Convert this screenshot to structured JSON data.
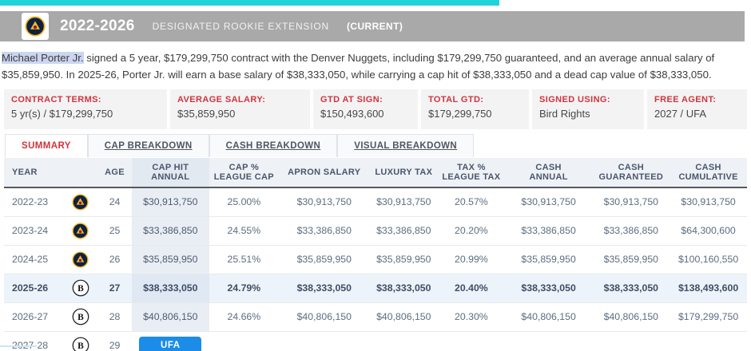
{
  "header": {
    "years": "2022-2026",
    "contract_type": "DESIGNATED ROOKIE EXTENSION",
    "status": "(CURRENT)"
  },
  "summary": {
    "player_highlight": "Michael Porter Jr.",
    "text_rest": " signed a 5 year, $179,299,750 contract with the Denver Nuggets, including $179,299,750 guaranteed, and an average annual salary of $35,859,950. In 2025-26, Porter Jr. will earn a base salary of $38,333,050, while carrying a cap hit of $38,333,050 and a dead cap value of $38,333,050."
  },
  "terms": [
    {
      "label": "CONTRACT TERMS:",
      "value": "5 yr(s) / $179,299,750"
    },
    {
      "label": "AVERAGE SALARY:",
      "value": "$35,859,950"
    },
    {
      "label": "GTD AT SIGN:",
      "value": "$150,493,600"
    },
    {
      "label": "TOTAL GTD:",
      "value": "$179,299,750"
    },
    {
      "label": "SIGNED USING:",
      "value": "Bird Rights"
    },
    {
      "label": "FREE AGENT:",
      "value": "2027 / UFA"
    }
  ],
  "tabs": [
    {
      "label": "SUMMARY",
      "active": true
    },
    {
      "label": "CAP BREAKDOWN",
      "active": false
    },
    {
      "label": "CASH BREAKDOWN",
      "active": false
    },
    {
      "label": "VISUAL BREAKDOWN",
      "active": false
    }
  ],
  "table": {
    "columns": [
      "YEAR",
      "",
      "AGE",
      "CAP HIT\nANNUAL",
      "CAP %\nLEAGUE CAP",
      "APRON SALARY",
      "LUXURY TAX",
      "TAX %\nLEAGUE TAX",
      "CASH\nANNUAL",
      "CASH\nGUARANTEED",
      "CASH\nCUMULATIVE"
    ],
    "rows": [
      {
        "year": "2022-23",
        "team": "DEN",
        "age": "24",
        "cap_hit": "$30,913,750",
        "cap_pct": "25.00%",
        "apron_salary": "$30,913,750",
        "luxury_tax": "$30,913,750",
        "tax_pct": "20.57%",
        "cash_annual": "$30,913,750",
        "cash_guaranteed": "$30,913,750",
        "cash_cumulative": "$30,913,750"
      },
      {
        "year": "2023-24",
        "team": "DEN",
        "age": "25",
        "cap_hit": "$33,386,850",
        "cap_pct": "24.55%",
        "apron_salary": "$33,386,850",
        "luxury_tax": "$33,386,850",
        "tax_pct": "20.20%",
        "cash_annual": "$33,386,850",
        "cash_guaranteed": "$33,386,850",
        "cash_cumulative": "$64,300,600"
      },
      {
        "year": "2024-25",
        "team": "DEN",
        "age": "26",
        "cap_hit": "$35,859,950",
        "cap_pct": "25.51%",
        "apron_salary": "$35,859,950",
        "luxury_tax": "$35,859,950",
        "tax_pct": "20.99%",
        "cash_annual": "$35,859,950",
        "cash_guaranteed": "$35,859,950",
        "cash_cumulative": "$100,160,550"
      },
      {
        "year": "2025-26",
        "team": "BKN",
        "age": "27",
        "current": true,
        "cap_hit": "$38,333,050",
        "cap_pct": "24.79%",
        "apron_salary": "$38,333,050",
        "luxury_tax": "$38,333,050",
        "tax_pct": "20.40%",
        "cash_annual": "$38,333,050",
        "cash_guaranteed": "$38,333,050",
        "cash_cumulative": "$138,493,600"
      },
      {
        "year": "2026-27",
        "team": "BKN",
        "age": "28",
        "cap_hit": "$40,806,150",
        "cap_pct": "24.66%",
        "apron_salary": "$40,806,150",
        "luxury_tax": "$40,806,150",
        "tax_pct": "20.30%",
        "cash_annual": "$40,806,150",
        "cash_guaranteed": "$40,806,150",
        "cash_cumulative": "$179,299,750"
      },
      {
        "year": "2027-28",
        "team": "BKN",
        "age": "29",
        "ufa": true,
        "cap_hit": "UFA",
        "cap_pct": "",
        "apron_salary": "",
        "luxury_tax": "",
        "tax_pct": "",
        "cash_annual": "",
        "cash_guaranteed": "",
        "cash_cumulative": ""
      }
    ]
  },
  "colors": {
    "accent_cyan": "#21d2da",
    "band_gray": "#a9a9a9",
    "label_red": "#d2343c",
    "highlight": "#ccd5f0",
    "header_bg": "#eef1f6",
    "cap_col_bg": "#e9eef5",
    "current_row_bg": "#edf3fa",
    "ufa_blue": "#1b8ce8",
    "nuggets_navy": "#0e2240",
    "nuggets_gold": "#fdb927"
  }
}
